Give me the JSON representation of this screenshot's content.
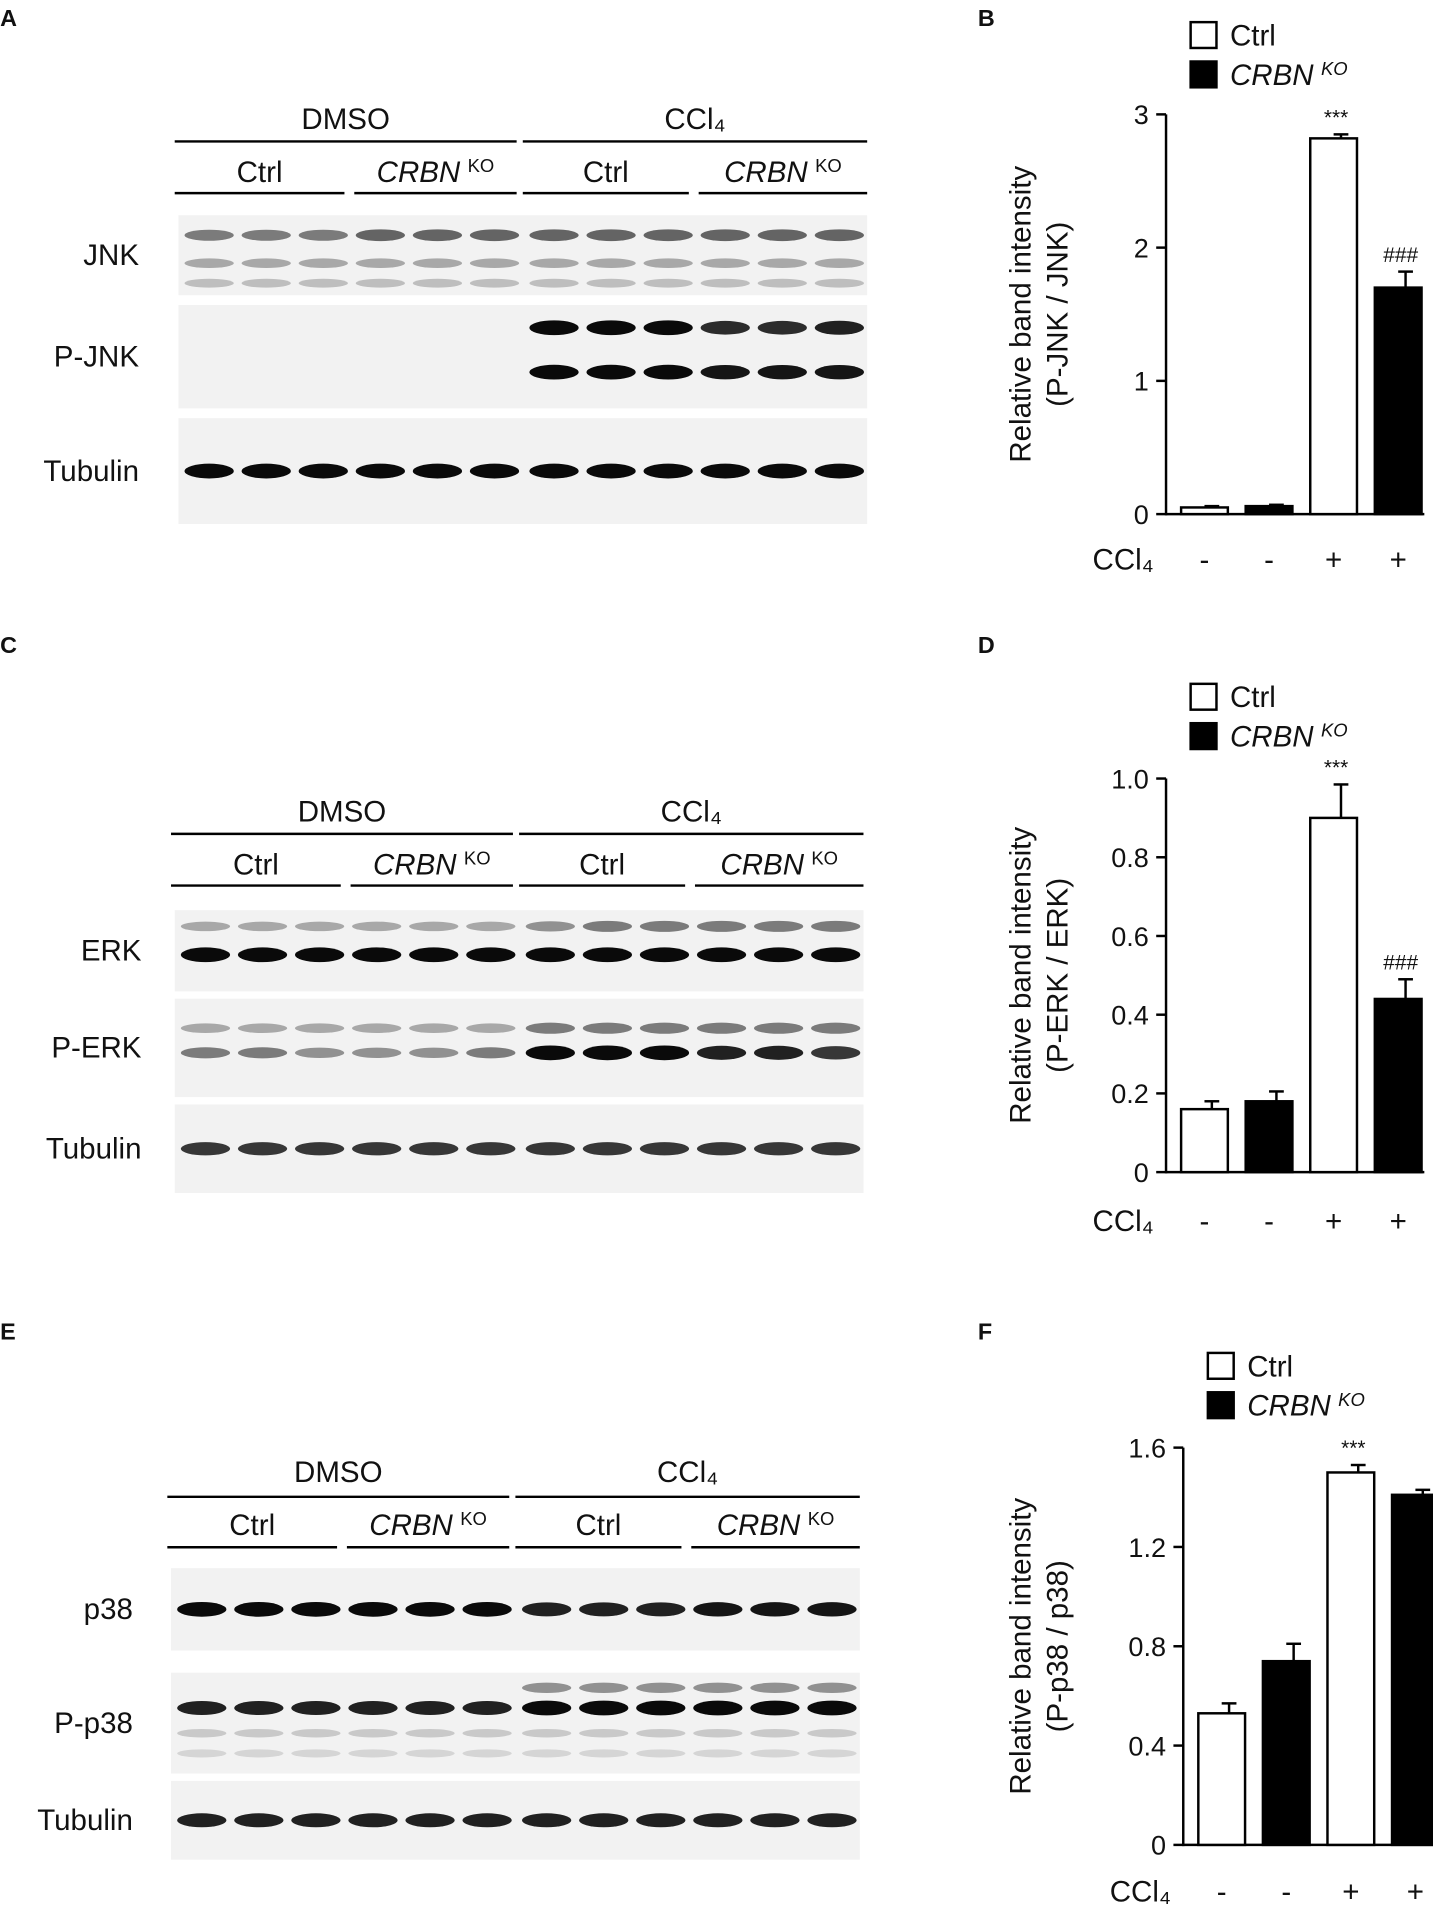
{
  "blots": [
    {
      "letter": "A",
      "treatments": [
        "DMSO",
        "CCl₄"
      ],
      "groups": [
        {
          "name": "Ctrl"
        },
        {
          "name": "CRBN",
          "sup": "KO"
        },
        {
          "name": "Ctrl"
        },
        {
          "name": "CRBN",
          "sup": "KO"
        }
      ],
      "rows": [
        "JNK",
        "P-JNK",
        "Tubulin"
      ]
    },
    {
      "letter": "C",
      "treatments": [
        "DMSO",
        "CCl₄"
      ],
      "groups": [
        {
          "name": "Ctrl"
        },
        {
          "name": "CRBN",
          "sup": "KO"
        },
        {
          "name": "Ctrl"
        },
        {
          "name": "CRBN",
          "sup": "KO"
        }
      ],
      "rows": [
        "ERK",
        "P-ERK",
        "Tubulin"
      ]
    },
    {
      "letter": "E",
      "treatments": [
        "DMSO",
        "CCl₄"
      ],
      "groups": [
        {
          "name": "Ctrl"
        },
        {
          "name": "CRBN",
          "sup": "KO"
        },
        {
          "name": "Ctrl"
        },
        {
          "name": "CRBN",
          "sup": "KO"
        }
      ],
      "rows": [
        "p38",
        "P-p38",
        "Tubulin"
      ]
    }
  ],
  "chart_data": [
    {
      "type": "bar",
      "letter": "B",
      "ylabel": [
        "Relative band intensity",
        "(P-JNK / JNK)"
      ],
      "xrow_label": "CCl₄",
      "categories": [
        "-",
        "-",
        "+",
        "+"
      ],
      "ylim": [
        0,
        3
      ],
      "yticks": [
        0,
        1,
        2,
        3
      ],
      "series": [
        {
          "name": "Ctrl",
          "color": "#ffffff",
          "values": [
            0.05,
            null,
            2.82,
            null
          ],
          "errors": [
            0.01,
            null,
            0.03,
            null
          ],
          "significance": [
            null,
            null,
            "***",
            null
          ]
        },
        {
          "name": "CRBN",
          "name_sup": "KO",
          "color": "#000000",
          "values": [
            null,
            0.06,
            null,
            1.7
          ],
          "errors": [
            null,
            0.01,
            null,
            0.12
          ],
          "significance": [
            null,
            null,
            null,
            "###"
          ]
        }
      ]
    },
    {
      "type": "bar",
      "letter": "D",
      "ylabel": [
        "Relative band intensity",
        "(P-ERK / ERK)"
      ],
      "xrow_label": "CCl₄",
      "categories": [
        "-",
        "-",
        "+",
        "+"
      ],
      "ylim": [
        0,
        1
      ],
      "yticks": [
        0,
        0.2,
        0.4,
        0.6,
        0.8,
        {
          "value": 1,
          "label": "1.0"
        }
      ],
      "series": [
        {
          "name": "Ctrl",
          "color": "#ffffff",
          "values": [
            0.16,
            null,
            0.9,
            null
          ],
          "errors": [
            0.02,
            null,
            0.085,
            null
          ],
          "significance": [
            null,
            null,
            "***",
            null
          ]
        },
        {
          "name": "CRBN",
          "name_sup": "KO",
          "color": "#000000",
          "values": [
            null,
            0.18,
            null,
            0.44
          ],
          "errors": [
            null,
            0.025,
            null,
            0.05
          ],
          "significance": [
            null,
            null,
            null,
            "###"
          ]
        }
      ]
    },
    {
      "type": "bar",
      "letter": "F",
      "ylabel": [
        "Relative band intensity",
        "(P-p38 / p38)"
      ],
      "xrow_label": "CCl₄",
      "categories": [
        "-",
        "-",
        "+",
        "+"
      ],
      "ylim": [
        0,
        1.6
      ],
      "yticks": [
        0,
        0.4,
        0.8,
        1.2,
        1.6
      ],
      "series": [
        {
          "name": "Ctrl",
          "color": "#ffffff",
          "values": [
            0.53,
            null,
            1.5,
            null
          ],
          "errors": [
            0.04,
            null,
            0.03,
            null
          ],
          "significance": [
            null,
            null,
            "***",
            null
          ]
        },
        {
          "name": "CRBN",
          "name_sup": "KO",
          "color": "#000000",
          "values": [
            null,
            0.74,
            null,
            1.41
          ],
          "errors": [
            null,
            0.07,
            null,
            0.02
          ],
          "significance": [
            null,
            null,
            null,
            null
          ]
        }
      ]
    }
  ]
}
